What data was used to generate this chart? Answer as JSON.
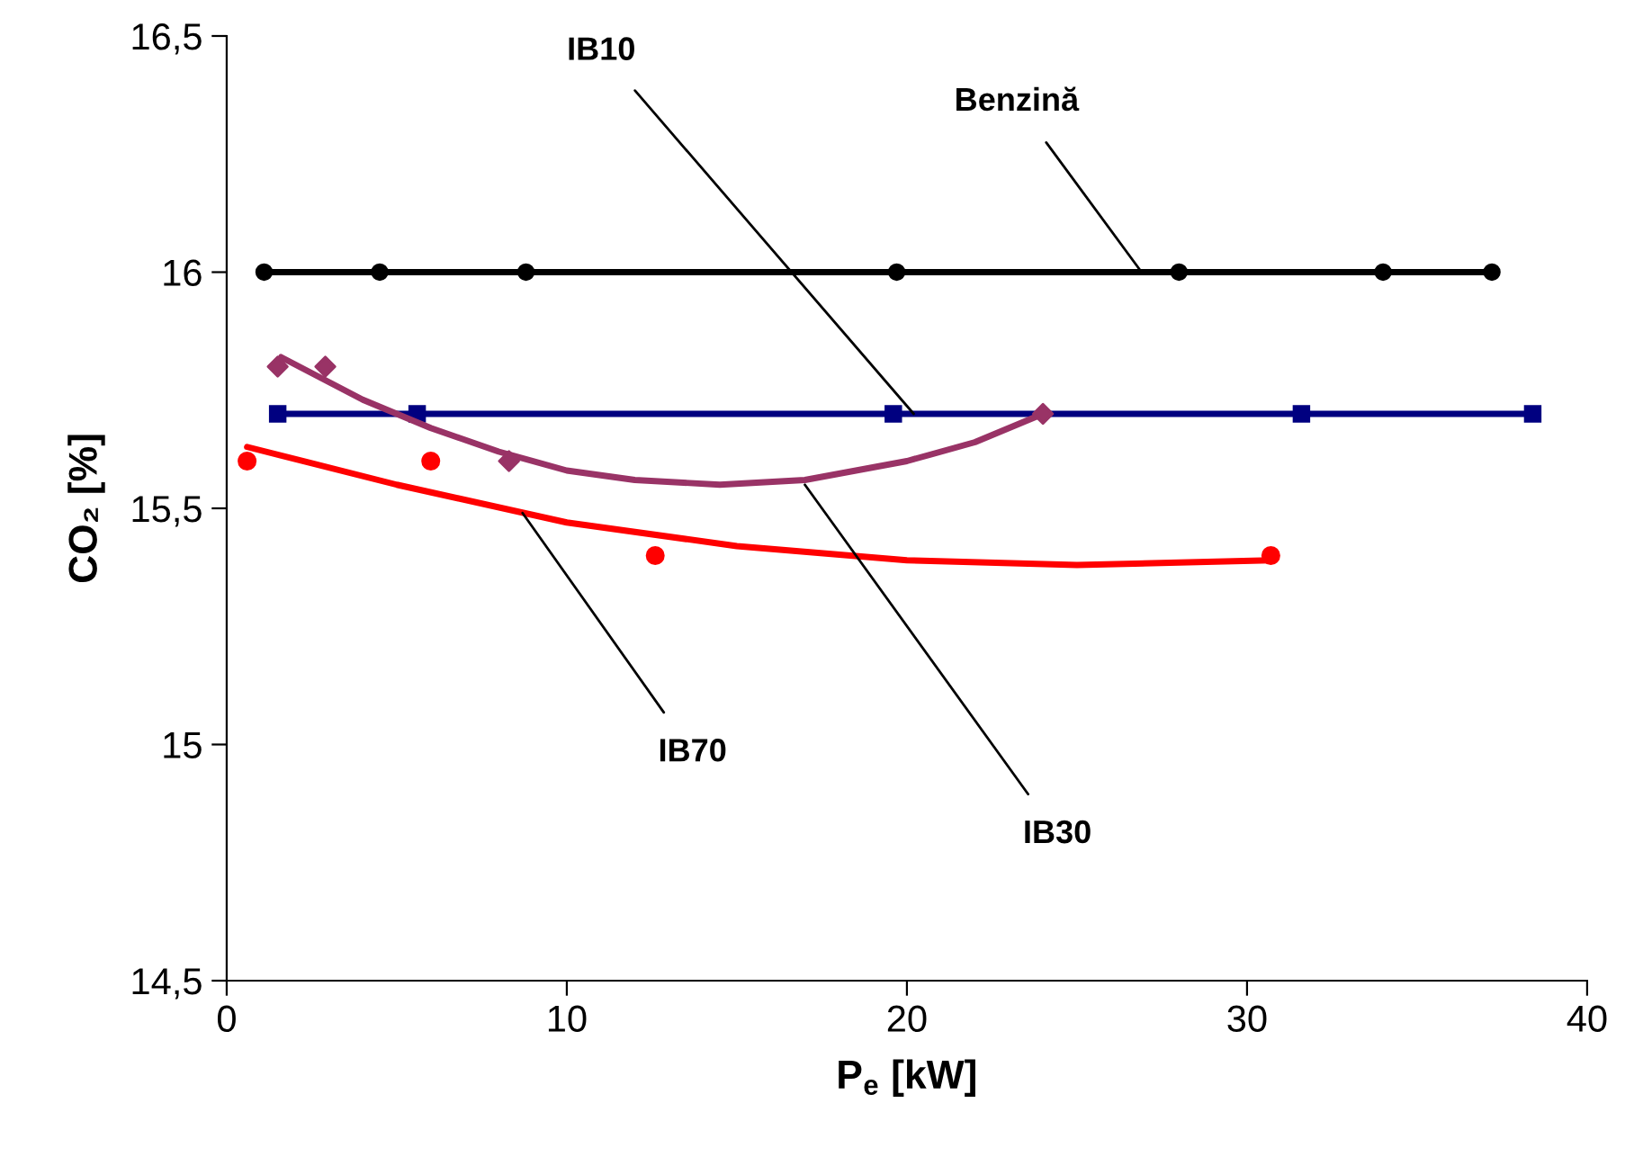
{
  "chart_data": {
    "type": "line",
    "xlabel": "P$_{e}$ [kW]",
    "ylabel": "CO₂ [%]",
    "xlim": [
      0,
      40
    ],
    "xticks": [
      0,
      10,
      20,
      30,
      40
    ],
    "ylim": [
      14.5,
      16.5
    ],
    "yticks": [
      {
        "value": 14.5,
        "label": "14,5"
      },
      15,
      {
        "value": 15.5,
        "label": "15,5"
      },
      16,
      {
        "value": 16.5,
        "label": "16,5"
      }
    ],
    "grid": false,
    "legend": false,
    "series": [
      {
        "color": "#000000",
        "marker": "circle",
        "x": [
          1.1,
          4.5,
          8.8,
          19.7,
          28.0,
          34.0,
          37.2
        ],
        "values": [
          16,
          16,
          16,
          16,
          16,
          16,
          16
        ]
      },
      {
        "color": "#000080",
        "marker": "square",
        "x": [
          1.5,
          5.6,
          19.6,
          31.6,
          38.4
        ],
        "values": [
          15.7,
          15.7,
          15.7,
          15.7,
          15.7
        ]
      },
      {
        "type": "scatter",
        "color": "#993366",
        "marker": "diamond",
        "x": [
          1.5,
          2.9,
          8.3,
          24.0
        ],
        "values": [
          15.8,
          15.8,
          15.6,
          15.7
        ]
      },
      {
        "color": "#993366",
        "marker": "none",
        "x": [
          1.6,
          4,
          6,
          8,
          10,
          12,
          14.5,
          17,
          20,
          22,
          24
        ],
        "values": [
          15.82,
          15.73,
          15.67,
          15.62,
          15.58,
          15.56,
          15.55,
          15.56,
          15.6,
          15.64,
          15.7
        ]
      },
      {
        "type": "scatter",
        "color": "#ff0000",
        "marker": "circle",
        "x": [
          0.6,
          6.0,
          12.6,
          30.7
        ],
        "values": [
          15.6,
          15.6,
          15.4,
          15.4
        ]
      },
      {
        "color": "#ff0000",
        "marker": "none",
        "x": [
          0.6,
          5,
          10,
          15,
          20,
          25,
          30.7
        ],
        "values": [
          15.63,
          15.55,
          15.47,
          15.42,
          15.39,
          15.38,
          15.39
        ]
      }
    ],
    "annotations": [
      {
        "text": "Benzină",
        "x": 26.9,
        "y": 16.0
      },
      {
        "text": "IB10",
        "x": 20.2,
        "y": 15.7
      },
      {
        "text": "IB30",
        "x": 17.0,
        "y": 15.55
      },
      {
        "text": "IB70",
        "x": 8.7,
        "y": 15.49
      }
    ]
  }
}
